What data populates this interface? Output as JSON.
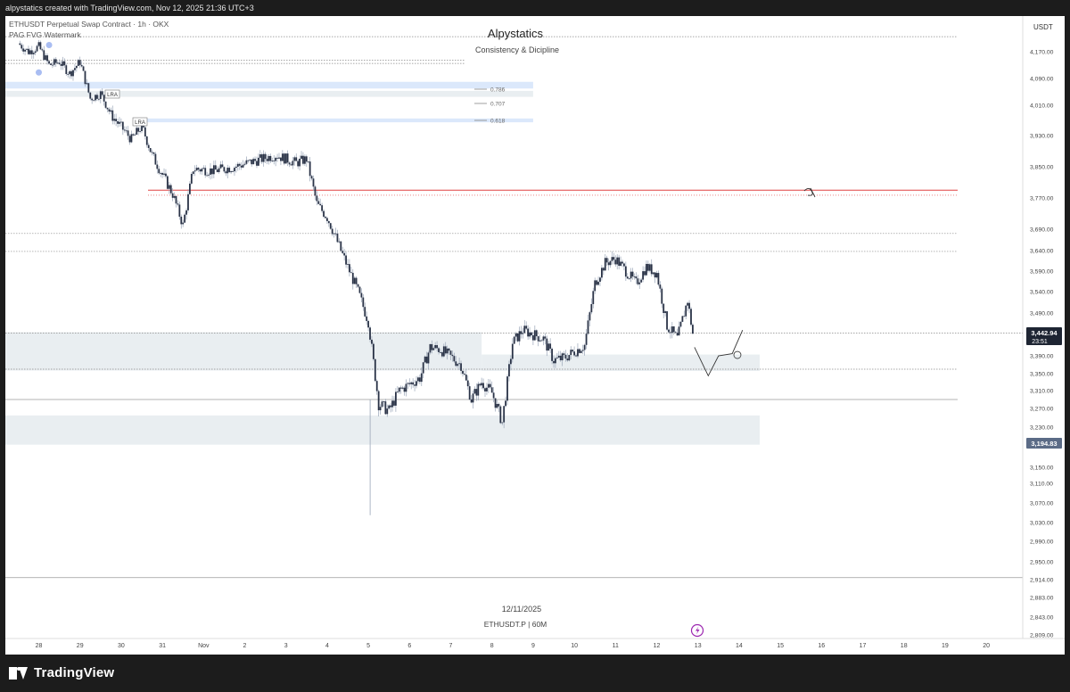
{
  "header": {
    "caption": "alpystatics created with TradingView.com, Nov 12, 2025 21:36 UTC+3"
  },
  "symbol_info": "ETHUSDT Perpetual Swap Contract · 1h · OKX",
  "watermark_label": "PAG FVG Watermark",
  "author": {
    "name": "Alpystatics",
    "tagline": "Consistency & Dicipline"
  },
  "bottom_caption": {
    "date": "12/11/2025",
    "symbol": "ETHUSDT.P | 60M"
  },
  "price_axis": {
    "currency": "USDT",
    "current_price": "3,442.94",
    "countdown": "23:51",
    "marked_price": "3,194.83"
  },
  "fib_levels": [
    "0.786",
    "0.707",
    "0.618"
  ],
  "lra_labels": [
    "LRA",
    "LRA"
  ],
  "footer": {
    "brand": "TradingView"
  },
  "colors": {
    "candle_body": "#2a3347",
    "candle_wick": "#9aa6b8",
    "zone_blue": "#dbe8fb",
    "zone_grey": "#e9eef1",
    "red_line": "#e04040",
    "price_tag": "#1e2533",
    "price_tag_marked": "#5b6b86",
    "background": "#1c1c1c"
  },
  "chart_data": {
    "type": "candlestick",
    "timeframe": "1h",
    "symbol": "ETHUSDT.P",
    "x_tick_labels": [
      "28",
      "29",
      "30",
      "31",
      "Nov",
      "2",
      "3",
      "4",
      "5",
      "6",
      "7",
      "8",
      "9",
      "10",
      "11",
      "12",
      "13",
      "14",
      "15",
      "16",
      "17",
      "18",
      "19",
      "20"
    ],
    "y_tick_labels": [
      "4,170.00",
      "4,090.00",
      "4,010.00",
      "3,930.00",
      "3,850.00",
      "3,770.00",
      "3,690.00",
      "3,640.00",
      "3,590.00",
      "3,540.00",
      "3,490.00",
      "3,390.00",
      "3,350.00",
      "3,310.00",
      "3,270.00",
      "3,230.00",
      "3,150.00",
      "3,110.00",
      "3,070.00",
      "3,030.00",
      "2,990.00",
      "2,950.00",
      "2,914.00",
      "2,883.00",
      "2,843.00",
      "2,809.00"
    ],
    "y_tick_values": [
      4170,
      4090,
      4010,
      3930,
      3850,
      3770,
      3690,
      3640,
      3590,
      3540,
      3490,
      3390,
      3350,
      3310,
      3270,
      3230,
      3150,
      3110,
      3070,
      3030,
      2990,
      2950,
      2914,
      2883,
      2843,
      2809
    ],
    "ylim": [
      2795,
      4195
    ],
    "path_points": [
      [
        "Oct 27 12:00",
        4195
      ],
      [
        "Oct 27 18:00",
        4170
      ],
      [
        "Oct 28 00:00",
        4185
      ],
      [
        "Oct 28 06:00",
        4130
      ],
      [
        "Oct 28 12:00",
        4140
      ],
      [
        "Oct 28 18:00",
        4105
      ],
      [
        "Oct 29 00:00",
        4140
      ],
      [
        "Oct 29 06:00",
        4030
      ],
      [
        "Oct 29 12:00",
        4045
      ],
      [
        "Oct 29 18:00",
        3985
      ],
      [
        "Oct 30 06:00",
        3920
      ],
      [
        "Oct 30 12:00",
        3955
      ],
      [
        "Oct 30 18:00",
        3880
      ],
      [
        "Oct 31 06:00",
        3780
      ],
      [
        "Oct 31 12:00",
        3700
      ],
      [
        "Oct 31 18:00",
        3845
      ],
      [
        "Nov 01 06:00",
        3840
      ],
      [
        "Nov 01 18:00",
        3850
      ],
      [
        "Nov 02 06:00",
        3865
      ],
      [
        "Nov 02 18:00",
        3880
      ],
      [
        "Nov 03 06:00",
        3860
      ],
      [
        "Nov 03 12:00",
        3870
      ],
      [
        "Nov 03 18:00",
        3755
      ],
      [
        "Nov 04 00:00",
        3720
      ],
      [
        "Nov 04 06:00",
        3660
      ],
      [
        "Nov 04 12:00",
        3600
      ],
      [
        "Nov 04 18:00",
        3540
      ],
      [
        "Nov 05 00:00",
        3470
      ],
      [
        "Nov 05 06:00",
        3280
      ],
      [
        "Nov 05 12:00",
        3265
      ],
      [
        "Nov 05 18:00",
        3310
      ],
      [
        "Nov 06 06:00",
        3340
      ],
      [
        "Nov 06 12:00",
        3410
      ],
      [
        "Nov 06 18:00",
        3405
      ],
      [
        "Nov 07 06:00",
        3370
      ],
      [
        "Nov 07 12:00",
        3290
      ],
      [
        "Nov 07 18:00",
        3330
      ],
      [
        "Nov 08 00:00",
        3305
      ],
      [
        "Nov 08 06:00",
        3240
      ],
      [
        "Nov 08 12:00",
        3420
      ],
      [
        "Nov 08 18:00",
        3450
      ],
      [
        "Nov 09 06:00",
        3430
      ],
      [
        "Nov 09 12:00",
        3380
      ],
      [
        "Nov 09 18:00",
        3385
      ],
      [
        "Nov 10 06:00",
        3415
      ],
      [
        "Nov 10 12:00",
        3560
      ],
      [
        "Nov 10 18:00",
        3610
      ],
      [
        "Nov 11 00:00",
        3620
      ],
      [
        "Nov 11 06:00",
        3590
      ],
      [
        "Nov 11 12:00",
        3560
      ],
      [
        "Nov 11 18:00",
        3600
      ],
      [
        "Nov 12 00:00",
        3585
      ],
      [
        "Nov 12 06:00",
        3460
      ],
      [
        "Nov 12 12:00",
        3430
      ],
      [
        "Nov 12 18:00",
        3520
      ],
      [
        "Nov 12 21:00",
        3442
      ]
    ],
    "horizontal_levels": [
      4215,
      4145,
      4135,
      3790,
      3777,
      3680,
      3638,
      3442.94,
      3360,
      3290,
      2918
    ],
    "zones": [
      {
        "label": "FVG",
        "from": [
          "Oct 27 00:00",
          4080
        ],
        "to": [
          "Nov 09 00:00",
          4060
        ],
        "color": "blue"
      },
      {
        "label": "FVG",
        "from": [
          "Oct 27 00:00",
          4053
        ],
        "to": [
          "Nov 09 00:00",
          4035
        ],
        "color": "grey"
      },
      {
        "label": "FVG",
        "from": [
          "Oct 30 12:00",
          3975
        ],
        "to": [
          "Nov 09 00:00",
          3965
        ],
        "color": "blue"
      },
      {
        "label": "range",
        "from": [
          "Oct 27 00:00",
          3445
        ],
        "to": [
          "Nov 07 18:00",
          3357
        ],
        "color": "grey"
      },
      {
        "label": "range",
        "from": [
          "Nov 07 18:00",
          3393
        ],
        "to": [
          "Nov 14 12:00",
          3356
        ],
        "color": "grey"
      },
      {
        "label": "range",
        "from": [
          "Oct 27 00:00",
          3255
        ],
        "to": [
          "Nov 14 12:00",
          3195
        ],
        "color": "grey"
      }
    ],
    "projection": [
      [
        "Nov 12 22:00",
        3410
      ],
      [
        "Nov 13 06:00",
        3345
      ],
      [
        "Nov 13 12:00",
        3390
      ],
      [
        "Nov 13 20:00",
        3395
      ],
      [
        "Nov 14 02:00",
        3450
      ]
    ],
    "fib_ratios": [
      0.786,
      0.707,
      0.618
    ],
    "current_price": 3442.94,
    "marked_price": 3194.83,
    "grid": false,
    "legend": "none"
  }
}
